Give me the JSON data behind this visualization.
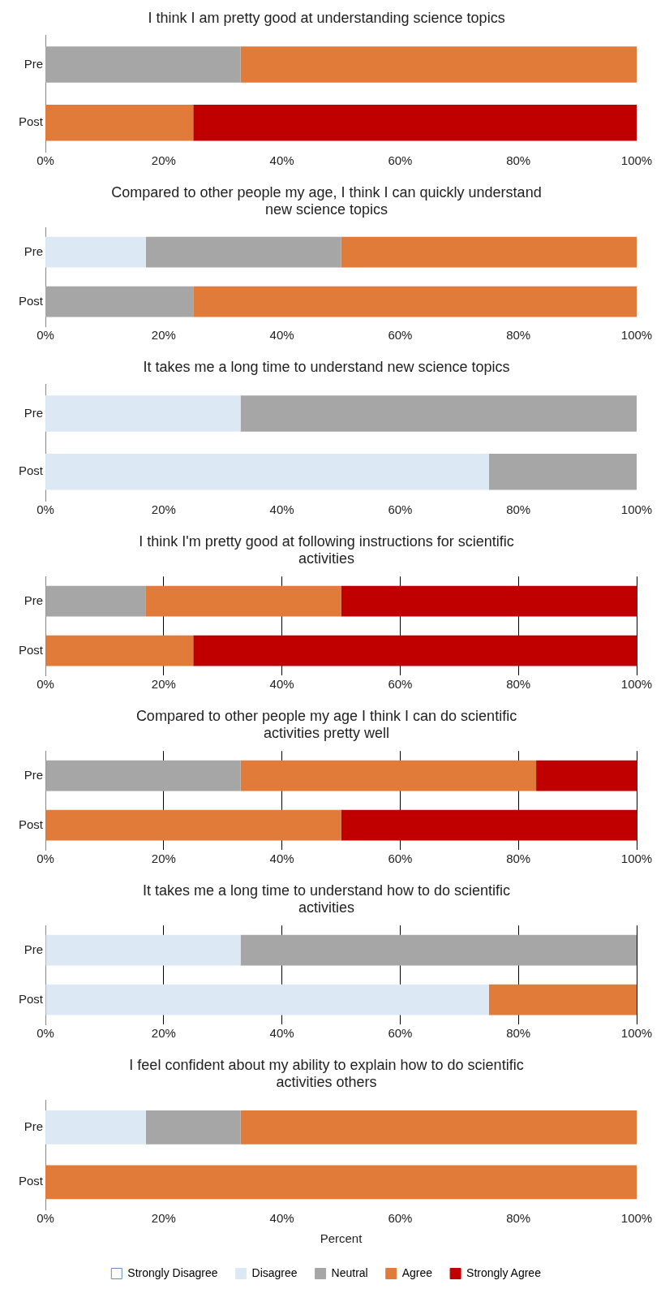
{
  "chart_data": [
    {
      "type": "bar",
      "orientation": "horizontal",
      "stacked": true,
      "title": "I think I am pretty good at understanding science topics",
      "categories": [
        "Pre",
        "Post"
      ],
      "xlim": [
        0,
        100
      ],
      "xticks": [
        {
          "value": 0,
          "label": "0%"
        },
        {
          "value": 20,
          "label": "20%"
        },
        {
          "value": 40,
          "label": "40%"
        },
        {
          "value": 60,
          "label": "60%"
        },
        {
          "value": 80,
          "label": "80%"
        },
        {
          "value": 100,
          "label": "100%"
        }
      ],
      "grid": false,
      "legend": false,
      "series": [
        {
          "color": "#a6a6a6",
          "values": [
            33,
            0
          ]
        },
        {
          "color": "#e07b39",
          "values": [
            67,
            25
          ]
        },
        {
          "color": "#c00000",
          "values": [
            0,
            75
          ]
        }
      ]
    },
    {
      "type": "bar",
      "orientation": "horizontal",
      "stacked": true,
      "title": "Compared to other people my age, I think I can quickly understand new science topics",
      "categories": [
        "Pre",
        "Post"
      ],
      "xlim": [
        0,
        100
      ],
      "xticks": [
        {
          "value": 0,
          "label": "0%"
        },
        {
          "value": 20,
          "label": "20%"
        },
        {
          "value": 40,
          "label": "40%"
        },
        {
          "value": 60,
          "label": "60%"
        },
        {
          "value": 80,
          "label": "80%"
        },
        {
          "value": 100,
          "label": "100%"
        }
      ],
      "grid": false,
      "legend": false,
      "series": [
        {
          "color": "#dce9f5",
          "values": [
            17,
            0
          ]
        },
        {
          "color": "#a6a6a6",
          "values": [
            33,
            25
          ]
        },
        {
          "color": "#e07b39",
          "values": [
            50,
            75
          ]
        }
      ]
    },
    {
      "type": "bar",
      "orientation": "horizontal",
      "stacked": true,
      "title": "It takes me a long time to understand new science topics",
      "categories": [
        "Pre",
        "Post"
      ],
      "xlim": [
        0,
        100
      ],
      "xticks": [
        {
          "value": 0,
          "label": "0%"
        },
        {
          "value": 20,
          "label": "20%"
        },
        {
          "value": 40,
          "label": "40%"
        },
        {
          "value": 60,
          "label": "60%"
        },
        {
          "value": 80,
          "label": "80%"
        },
        {
          "value": 100,
          "label": "100%"
        }
      ],
      "grid": false,
      "legend": false,
      "series": [
        {
          "color": "#dce9f5",
          "values": [
            33,
            75
          ]
        },
        {
          "color": "#a6a6a6",
          "values": [
            67,
            25
          ]
        }
      ]
    },
    {
      "type": "bar",
      "orientation": "horizontal",
      "stacked": true,
      "title": "I think I'm pretty good at following instructions for scientific activities",
      "categories": [
        "Pre",
        "Post"
      ],
      "xlim": [
        0,
        100
      ],
      "xticks": [
        {
          "value": 0,
          "label": "0%"
        },
        {
          "value": 20,
          "label": "20%"
        },
        {
          "value": 40,
          "label": "40%"
        },
        {
          "value": 60,
          "label": "60%"
        },
        {
          "value": 80,
          "label": "80%"
        },
        {
          "value": 100,
          "label": "100%"
        }
      ],
      "grid": "x",
      "legend": false,
      "series": [
        {
          "color": "#a6a6a6",
          "values": [
            17,
            0
          ]
        },
        {
          "color": "#e07b39",
          "values": [
            33,
            25
          ]
        },
        {
          "color": "#c00000",
          "values": [
            50,
            75
          ]
        }
      ]
    },
    {
      "type": "bar",
      "orientation": "horizontal",
      "stacked": true,
      "title": "Compared to other people my age I think I can do scientific activities pretty well",
      "categories": [
        "Pre",
        "Post"
      ],
      "xlim": [
        0,
        100
      ],
      "xticks": [
        {
          "value": 0,
          "label": "0%"
        },
        {
          "value": 20,
          "label": "20%"
        },
        {
          "value": 40,
          "label": "40%"
        },
        {
          "value": 60,
          "label": "60%"
        },
        {
          "value": 80,
          "label": "80%"
        },
        {
          "value": 100,
          "label": "100%"
        }
      ],
      "grid": "x",
      "legend": false,
      "series": [
        {
          "color": "#a6a6a6",
          "values": [
            33,
            0
          ]
        },
        {
          "color": "#e07b39",
          "values": [
            50,
            50
          ]
        },
        {
          "color": "#c00000",
          "values": [
            17,
            50
          ]
        }
      ]
    },
    {
      "type": "bar",
      "orientation": "horizontal",
      "stacked": true,
      "title": "It takes me a long time to understand how to do scientific activities",
      "categories": [
        "Pre",
        "Post"
      ],
      "xlim": [
        0,
        100
      ],
      "xticks": [
        {
          "value": 0,
          "label": "0%"
        },
        {
          "value": 20,
          "label": "20%"
        },
        {
          "value": 40,
          "label": "40%"
        },
        {
          "value": 60,
          "label": "60%"
        },
        {
          "value": 80,
          "label": "80%"
        },
        {
          "value": 100,
          "label": "100%"
        }
      ],
      "grid": "x",
      "legend": false,
      "series": [
        {
          "color": "#dce9f5",
          "values": [
            33,
            75
          ]
        },
        {
          "color": "#a6a6a6",
          "values": [
            67,
            0
          ]
        },
        {
          "color": "#e07b39",
          "values": [
            0,
            25
          ]
        }
      ]
    },
    {
      "type": "bar",
      "orientation": "horizontal",
      "stacked": true,
      "title": "I feel confident about my ability to explain how to do scientific activities others",
      "xlabel": "Percent",
      "categories": [
        "Pre",
        "Post"
      ],
      "xlim": [
        0,
        100
      ],
      "xticks": [
        {
          "value": 0,
          "label": "0%"
        },
        {
          "value": 20,
          "label": "20%"
        },
        {
          "value": 40,
          "label": "40%"
        },
        {
          "value": 60,
          "label": "60%"
        },
        {
          "value": 80,
          "label": "80%"
        },
        {
          "value": 100,
          "label": "100%"
        }
      ],
      "grid": false,
      "legend": "bottom",
      "series": [
        {
          "name": "Strongly Disagree",
          "color": "#ffffff",
          "values": [
            0,
            0
          ]
        },
        {
          "name": "Disagree",
          "color": "#dce9f5",
          "values": [
            17,
            0
          ]
        },
        {
          "name": "Neutral",
          "color": "#a6a6a6",
          "values": [
            16,
            0
          ]
        },
        {
          "name": "Agree",
          "color": "#e07b39",
          "values": [
            67,
            100
          ]
        },
        {
          "name": "Strongly Agree",
          "color": "#c00000",
          "values": [
            0,
            0
          ]
        }
      ]
    }
  ]
}
